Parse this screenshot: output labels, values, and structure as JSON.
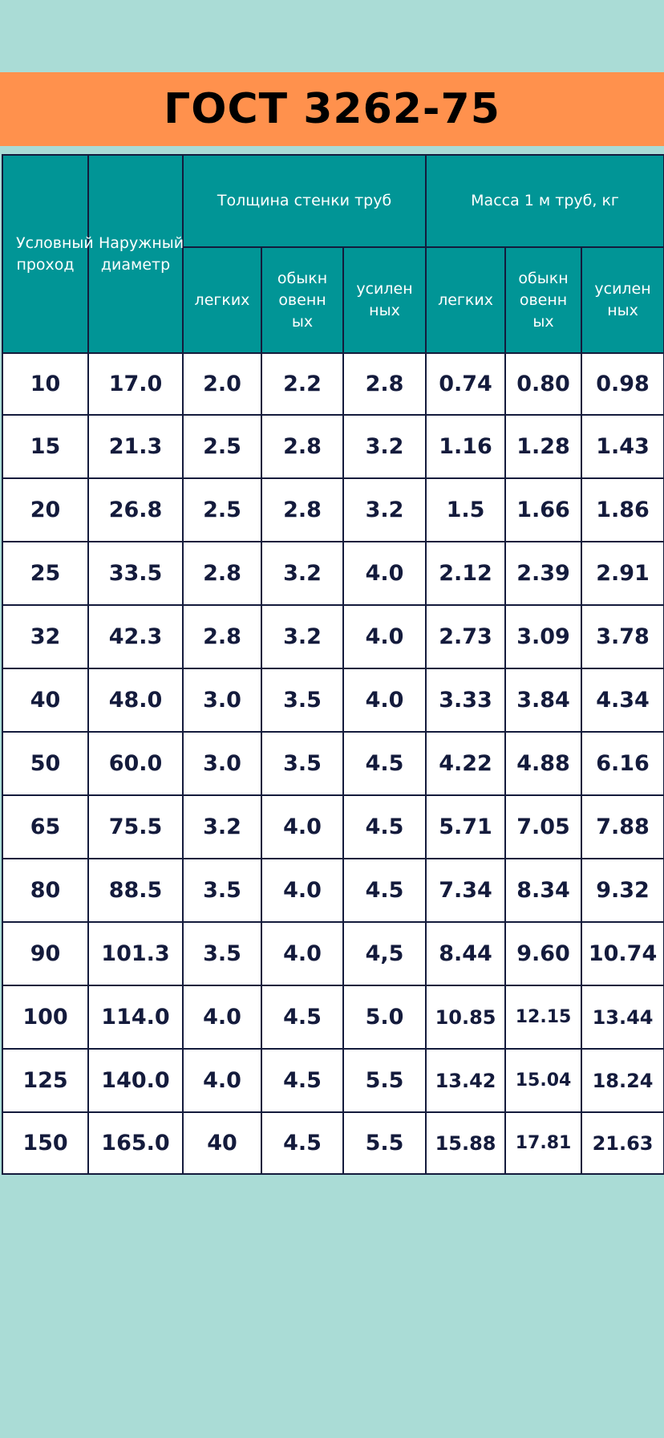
{
  "title": "ГОСТ 3262-75",
  "headers": {
    "col1": "Условный проход",
    "col2": "Наружный диаметр",
    "group_thickness": "Толщина стенки труб",
    "group_mass": "Масса 1 м труб, кг",
    "thickness_sub": [
      "легких",
      "обыкновенных",
      "усиленных"
    ],
    "mass_sub": [
      "легких",
      "обыкновенных",
      "усиленных"
    ]
  },
  "rows": [
    [
      "10",
      "17.0",
      "2.0",
      "2.2",
      "2.8",
      "0.74",
      "0.80",
      "0.98"
    ],
    [
      "15",
      "21.3",
      "2.5",
      "2.8",
      "3.2",
      "1.16",
      "1.28",
      "1.43"
    ],
    [
      "20",
      "26.8",
      "2.5",
      "2.8",
      "3.2",
      "1.5",
      "1.66",
      "1.86"
    ],
    [
      "25",
      "33.5",
      "2.8",
      "3.2",
      "4.0",
      "2.12",
      "2.39",
      "2.91"
    ],
    [
      "32",
      "42.3",
      "2.8",
      "3.2",
      "4.0",
      "2.73",
      "3.09",
      "3.78"
    ],
    [
      "40",
      "48.0",
      "3.0",
      "3.5",
      "4.0",
      "3.33",
      "3.84",
      "4.34"
    ],
    [
      "50",
      "60.0",
      "3.0",
      "3.5",
      "4.5",
      "4.22",
      "4.88",
      "6.16"
    ],
    [
      "65",
      "75.5",
      "3.2",
      "4.0",
      "4.5",
      "5.71",
      "7.05",
      "7.88"
    ],
    [
      "80",
      "88.5",
      "3.5",
      "4.0",
      "4.5",
      "7.34",
      "8.34",
      "9.32"
    ],
    [
      "90",
      "101.3",
      "3.5",
      "4.0",
      "4,5",
      "8.44",
      "9.60",
      "10.74"
    ],
    [
      "100",
      "114.0",
      "4.0",
      "4.5",
      "5.0",
      "10.85",
      "12.15",
      "13.44"
    ],
    [
      "125",
      "140.0",
      "4.0",
      "4.5",
      "5.5",
      "13.42",
      "15.04",
      "18.24"
    ],
    [
      "150",
      "165.0",
      "40",
      "4.5",
      "5.5",
      "15.88",
      "17.81",
      "21.63"
    ]
  ],
  "colors": {
    "background": "#aadcd6",
    "banner": "#ff914d",
    "header": "#019596",
    "border_text": "#141b3c"
  }
}
